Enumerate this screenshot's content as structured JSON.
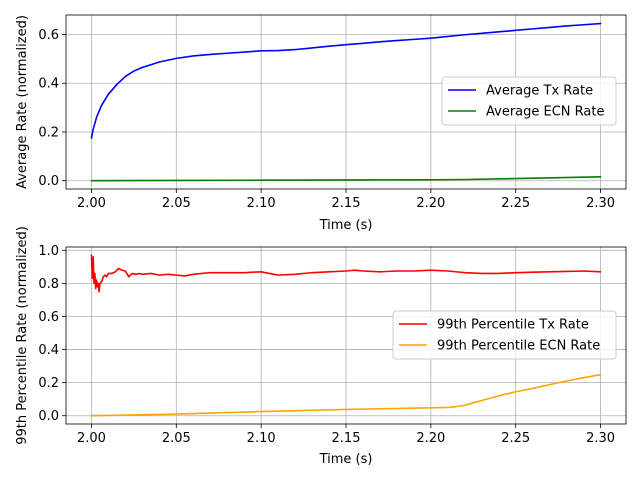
{
  "chart_data": [
    {
      "type": "line",
      "xlabel": "Time (s)",
      "ylabel": "Average Rate (normalized)",
      "xlim": [
        1.985,
        2.315
      ],
      "ylim": [
        -0.034,
        0.68
      ],
      "xticks": [
        2.0,
        2.05,
        2.1,
        2.15,
        2.2,
        2.25,
        2.3
      ],
      "xtick_labels": [
        "2.00",
        "2.05",
        "2.10",
        "2.15",
        "2.20",
        "2.25",
        "2.30"
      ],
      "yticks": [
        0.0,
        0.2,
        0.4,
        0.6
      ],
      "ytick_labels": [
        "0.0",
        "0.2",
        "0.4",
        "0.6"
      ],
      "grid": true,
      "legend_position": "center-right",
      "series": [
        {
          "name": "Average Tx Rate",
          "color": "#0000ff",
          "x": [
            2.0,
            2.001,
            2.003,
            2.006,
            2.01,
            2.015,
            2.02,
            2.025,
            2.03,
            2.035,
            2.04,
            2.05,
            2.06,
            2.07,
            2.08,
            2.09,
            2.1,
            2.11,
            2.12,
            2.13,
            2.14,
            2.15,
            2.16,
            2.17,
            2.18,
            2.19,
            2.2,
            2.21,
            2.22,
            2.23,
            2.24,
            2.25,
            2.26,
            2.27,
            2.28,
            2.29,
            2.3
          ],
          "y": [
            0.175,
            0.21,
            0.26,
            0.31,
            0.355,
            0.395,
            0.428,
            0.45,
            0.465,
            0.476,
            0.487,
            0.502,
            0.512,
            0.518,
            0.523,
            0.528,
            0.533,
            0.534,
            0.538,
            0.545,
            0.552,
            0.558,
            0.564,
            0.57,
            0.575,
            0.58,
            0.585,
            0.592,
            0.599,
            0.605,
            0.611,
            0.617,
            0.623,
            0.629,
            0.635,
            0.64,
            0.645
          ]
        },
        {
          "name": "Average ECN Rate",
          "color": "#008000",
          "x": [
            2.0,
            2.05,
            2.1,
            2.15,
            2.2,
            2.22,
            2.25,
            2.3
          ],
          "y": [
            0.0,
            0.001,
            0.002,
            0.003,
            0.004,
            0.005,
            0.009,
            0.016
          ]
        }
      ]
    },
    {
      "type": "line",
      "xlabel": "Time (s)",
      "ylabel": "99th Percentile Rate (normalized)",
      "xlim": [
        1.985,
        2.315
      ],
      "ylim": [
        -0.05,
        1.02
      ],
      "xticks": [
        2.0,
        2.05,
        2.1,
        2.15,
        2.2,
        2.25,
        2.3
      ],
      "xtick_labels": [
        "2.00",
        "2.05",
        "2.10",
        "2.15",
        "2.20",
        "2.25",
        "2.30"
      ],
      "yticks": [
        0.0,
        0.2,
        0.4,
        0.6,
        0.8,
        1.0
      ],
      "ytick_labels": [
        "0.0",
        "0.2",
        "0.4",
        "0.6",
        "0.8",
        "1.0"
      ],
      "grid": true,
      "legend_position": "center-right",
      "series": [
        {
          "name": "99th Percentile Tx Rate",
          "color": "#ff0000",
          "x": [
            2.0,
            2.0005,
            2.001,
            2.0015,
            2.002,
            2.0025,
            2.003,
            2.0035,
            2.004,
            2.0045,
            2.005,
            2.006,
            2.007,
            2.008,
            2.009,
            2.01,
            2.012,
            2.014,
            2.016,
            2.018,
            2.02,
            2.022,
            2.024,
            2.026,
            2.028,
            2.03,
            2.035,
            2.04,
            2.045,
            2.05,
            2.055,
            2.06,
            2.065,
            2.07,
            2.075,
            2.08,
            2.09,
            2.1,
            2.11,
            2.12,
            2.13,
            2.14,
            2.15,
            2.155,
            2.16,
            2.17,
            2.18,
            2.19,
            2.2,
            2.21,
            2.22,
            2.23,
            2.24,
            2.25,
            2.26,
            2.27,
            2.28,
            2.29,
            2.3
          ],
          "y": [
            0.97,
            0.83,
            0.96,
            0.8,
            0.86,
            0.77,
            0.82,
            0.78,
            0.8,
            0.75,
            0.8,
            0.81,
            0.84,
            0.85,
            0.84,
            0.86,
            0.86,
            0.87,
            0.89,
            0.88,
            0.875,
            0.84,
            0.86,
            0.855,
            0.86,
            0.855,
            0.86,
            0.85,
            0.855,
            0.85,
            0.845,
            0.855,
            0.86,
            0.865,
            0.865,
            0.865,
            0.865,
            0.87,
            0.85,
            0.855,
            0.865,
            0.87,
            0.875,
            0.88,
            0.875,
            0.87,
            0.875,
            0.875,
            0.88,
            0.875,
            0.865,
            0.86,
            0.86,
            0.865,
            0.868,
            0.87,
            0.872,
            0.875,
            0.87
          ]
        },
        {
          "name": "99th Percentile ECN Rate",
          "color": "#ffa500",
          "x": [
            2.0,
            2.05,
            2.1,
            2.15,
            2.2,
            2.21,
            2.215,
            2.22,
            2.225,
            2.23,
            2.24,
            2.25,
            2.26,
            2.27,
            2.28,
            2.29,
            2.3
          ],
          "y": [
            0.0,
            0.01,
            0.025,
            0.038,
            0.048,
            0.05,
            0.055,
            0.063,
            0.078,
            0.092,
            0.12,
            0.145,
            0.165,
            0.188,
            0.21,
            0.23,
            0.248
          ]
        }
      ]
    }
  ]
}
